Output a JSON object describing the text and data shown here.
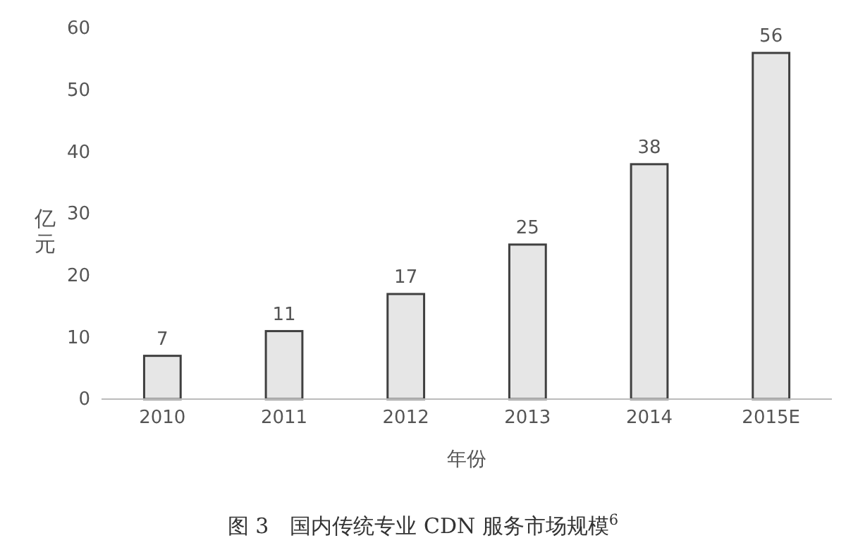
{
  "chart_data": {
    "type": "bar",
    "title": "图 3　国内传统专业 CDN 服务市场规模$^{6}$",
    "xlabel": "年份",
    "ylabel": "亿元",
    "categories": [
      "2010",
      "2011",
      "2012",
      "2013",
      "2014",
      "2015E"
    ],
    "values": [
      7,
      11,
      17,
      25,
      38,
      56
    ],
    "color": "#e6e6e6",
    "ylim": [
      0,
      60
    ],
    "yticks": [
      0,
      10,
      20,
      30,
      40,
      50,
      60
    ],
    "grid": false,
    "data_labels": true
  }
}
